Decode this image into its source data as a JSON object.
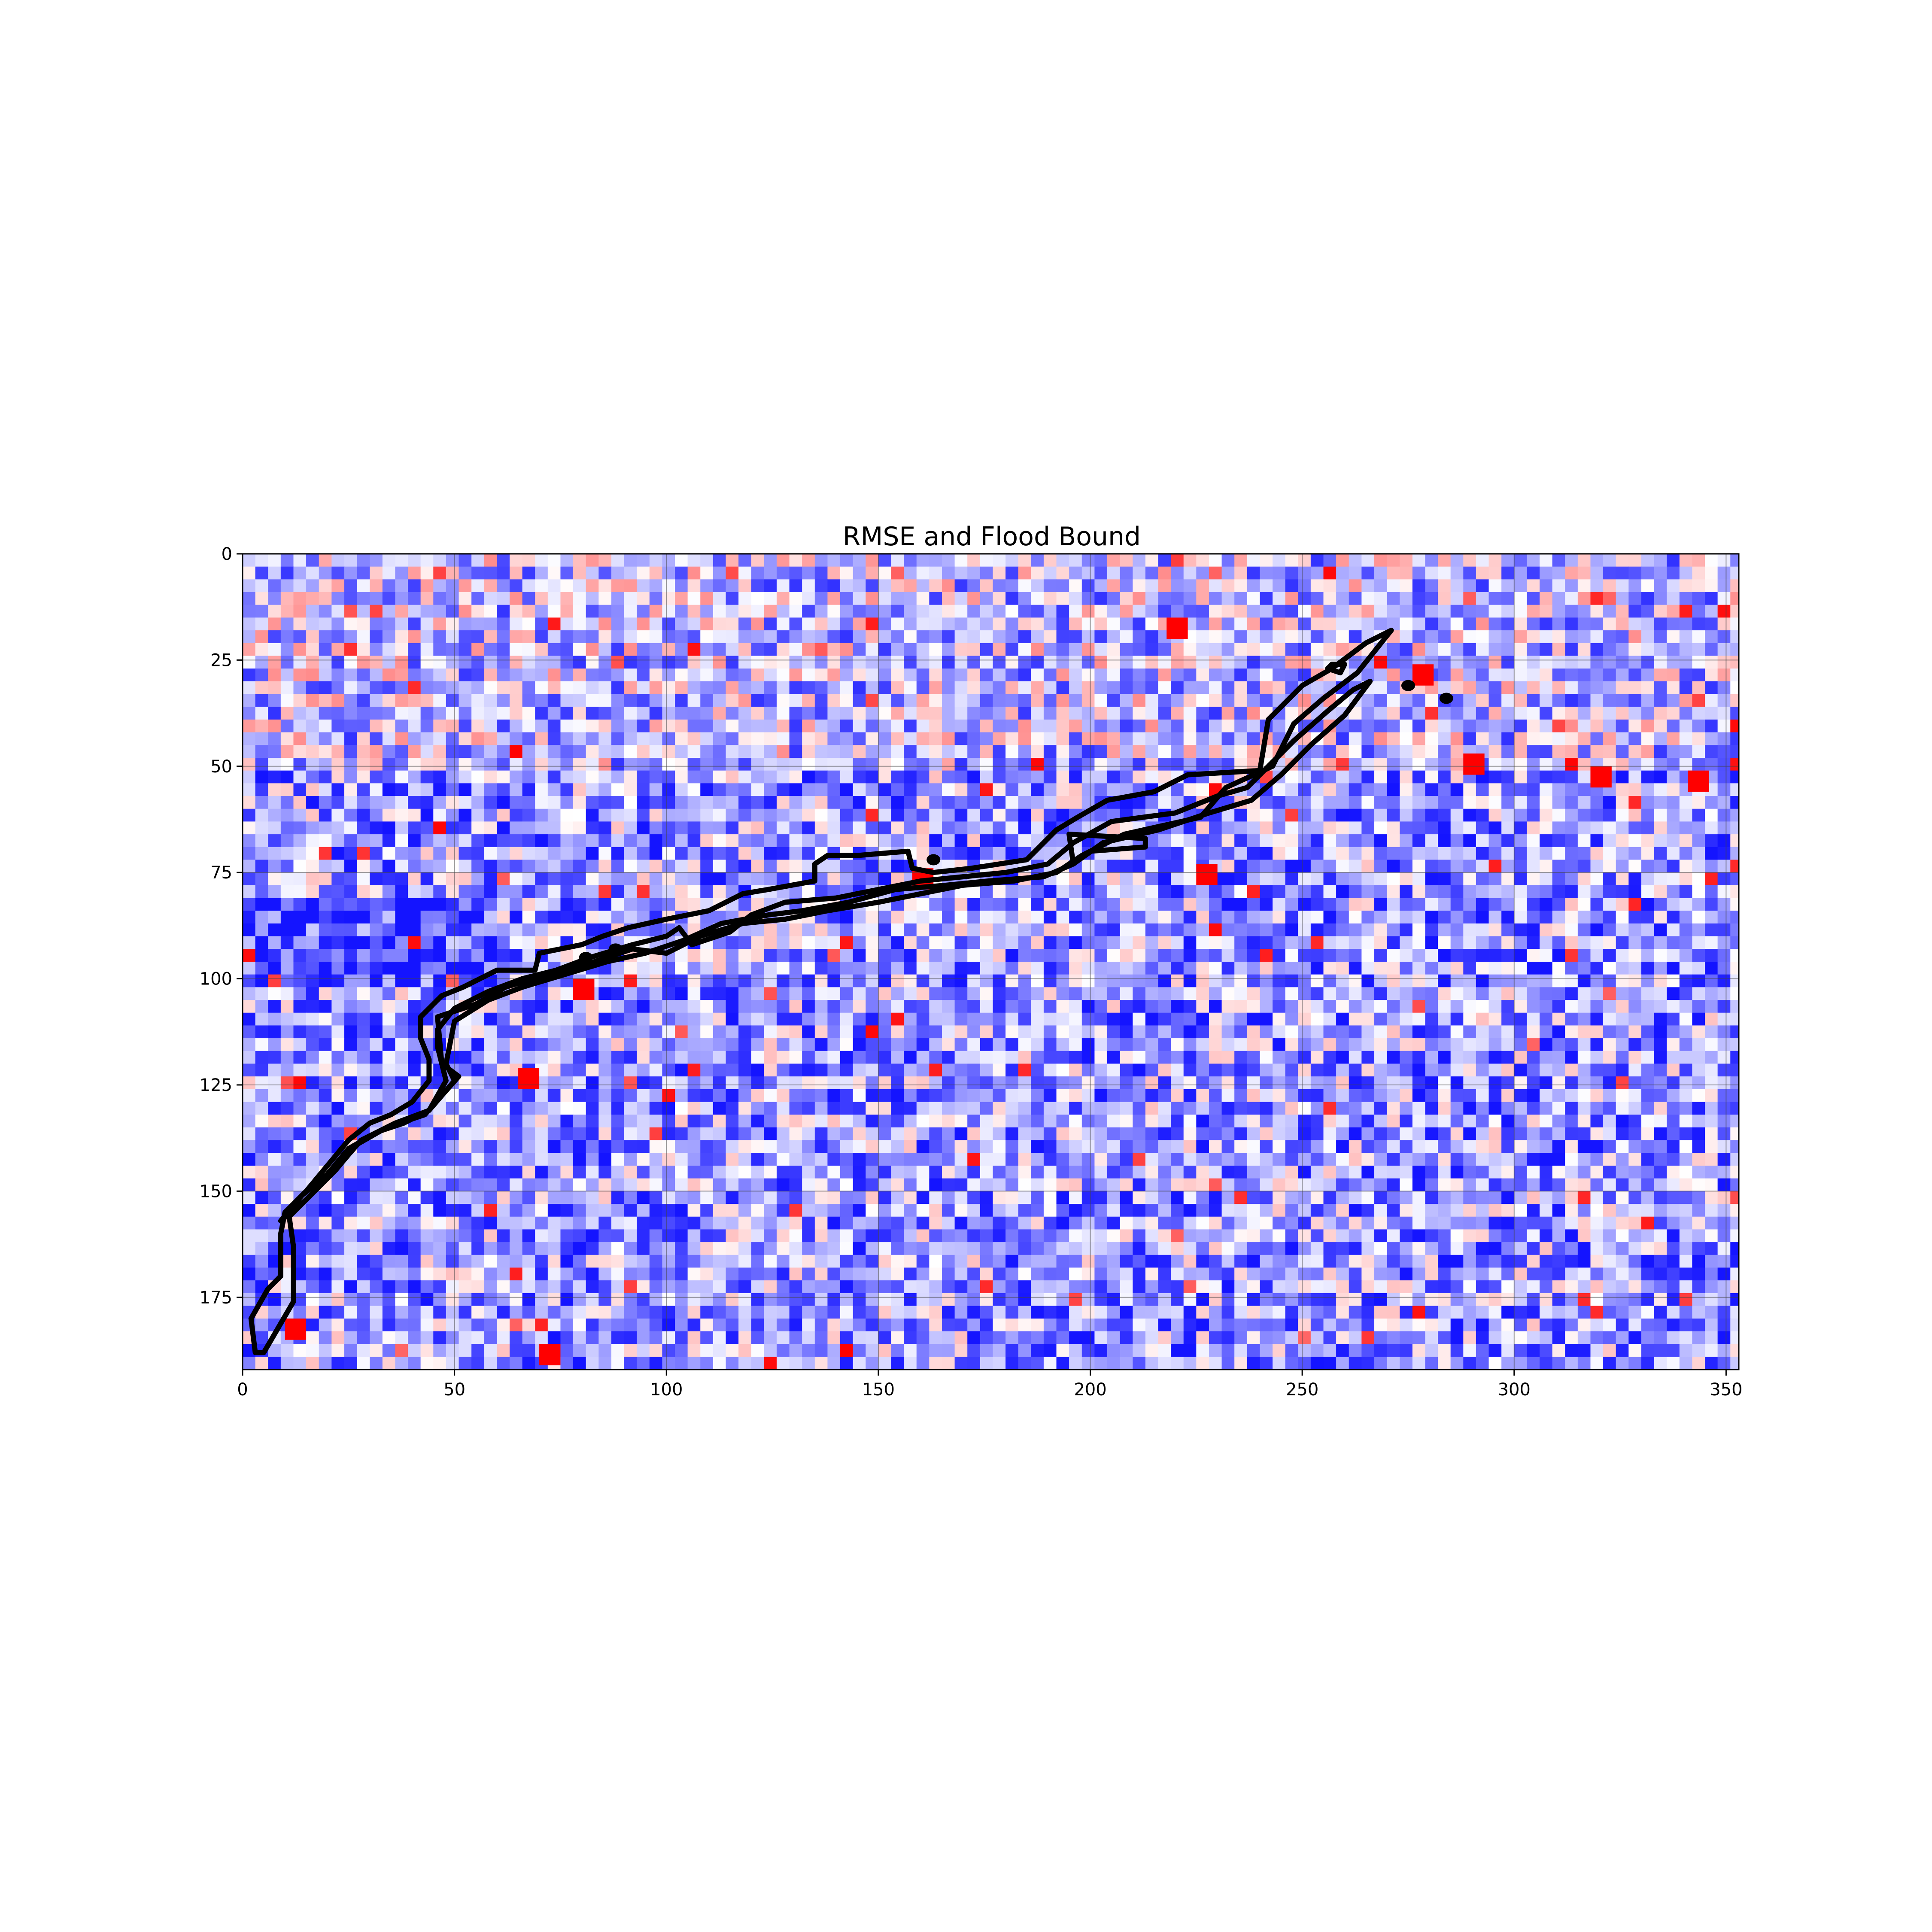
{
  "chart_data": {
    "type": "heatmap",
    "title": "RMSE and Flood Bound",
    "xlabel": "",
    "ylabel": "",
    "xlim": [
      0,
      353
    ],
    "ylim": [
      192,
      0
    ],
    "x_ticks": [
      0,
      50,
      100,
      150,
      200,
      250,
      300,
      350
    ],
    "y_ticks": [
      0,
      25,
      50,
      75,
      100,
      125,
      150,
      175
    ],
    "x_tick_labels": [
      "0",
      "50",
      "100",
      "150",
      "200",
      "250",
      "300",
      "350"
    ],
    "y_tick_labels": [
      "0",
      "25",
      "50",
      "75",
      "100",
      "125",
      "150",
      "175"
    ],
    "grid": true,
    "colormap": "bwr",
    "colors": {
      "low": "#0000ff",
      "mid": "#ffffff",
      "high": "#ff0000",
      "contour": "#000000"
    },
    "hotspots": [
      {
        "x": 343,
        "y": 53
      },
      {
        "x": 227,
        "y": 75
      },
      {
        "x": 67,
        "y": 123
      },
      {
        "x": 72,
        "y": 188
      },
      {
        "x": 12,
        "y": 182
      },
      {
        "x": 80,
        "y": 102
      },
      {
        "x": 278,
        "y": 28
      },
      {
        "x": 220,
        "y": 17
      },
      {
        "x": 290,
        "y": 49
      },
      {
        "x": 320,
        "y": 52
      },
      {
        "x": 160,
        "y": 76
      }
    ],
    "flood_bound": {
      "outer": [
        [
          3,
          188
        ],
        [
          2,
          180
        ],
        [
          6,
          173
        ],
        [
          9,
          170
        ],
        [
          9,
          160
        ],
        [
          10,
          155
        ],
        [
          15,
          150
        ],
        [
          20,
          144
        ],
        [
          25,
          138
        ],
        [
          30,
          134
        ],
        [
          35,
          132
        ],
        [
          40,
          129
        ],
        [
          44,
          124
        ],
        [
          44,
          119
        ],
        [
          42,
          114
        ],
        [
          42,
          109
        ],
        [
          47,
          104
        ],
        [
          52,
          102
        ],
        [
          60,
          98
        ],
        [
          69,
          98
        ],
        [
          70,
          94
        ],
        [
          80,
          92
        ],
        [
          85,
          90
        ],
        [
          91,
          88
        ],
        [
          100,
          86
        ],
        [
          110,
          84
        ],
        [
          118,
          80
        ],
        [
          124,
          79
        ],
        [
          135,
          77
        ],
        [
          135,
          73
        ],
        [
          138,
          71
        ],
        [
          145,
          71
        ],
        [
          157,
          70
        ],
        [
          158,
          74
        ],
        [
          163,
          75
        ],
        [
          172,
          74
        ],
        [
          185,
          72
        ],
        [
          192,
          65
        ],
        [
          197,
          62
        ],
        [
          204,
          58
        ],
        [
          215,
          56
        ],
        [
          223,
          52
        ],
        [
          240,
          51
        ],
        [
          242,
          39
        ],
        [
          250,
          31
        ],
        [
          257,
          27
        ],
        [
          265,
          21
        ],
        [
          271,
          18
        ],
        [
          263,
          28
        ],
        [
          255,
          34
        ],
        [
          248,
          40
        ],
        [
          243,
          50
        ],
        [
          232,
          55
        ],
        [
          226,
          62
        ],
        [
          208,
          66
        ],
        [
          198,
          71
        ],
        [
          192,
          75
        ],
        [
          182,
          77
        ],
        [
          170,
          78
        ],
        [
          160,
          80
        ],
        [
          150,
          82
        ],
        [
          138,
          84
        ],
        [
          128,
          86
        ],
        [
          118,
          87
        ],
        [
          108,
          90
        ],
        [
          100,
          94
        ],
        [
          92,
          93
        ],
        [
          83,
          96
        ],
        [
          72,
          99
        ],
        [
          62,
          102
        ],
        [
          55,
          106
        ],
        [
          46,
          109
        ],
        [
          47,
          120
        ],
        [
          51,
          123
        ],
        [
          43,
          132
        ],
        [
          34,
          135
        ],
        [
          27,
          139
        ],
        [
          22,
          145
        ],
        [
          16,
          151
        ],
        [
          11,
          156
        ],
        [
          12,
          163
        ],
        [
          12,
          176
        ],
        [
          5,
          188
        ],
        [
          3,
          188
        ]
      ],
      "inner": [
        [
          9,
          157
        ],
        [
          14,
          151
        ],
        [
          20,
          146
        ],
        [
          25,
          140
        ],
        [
          32,
          136
        ],
        [
          38,
          134
        ],
        [
          44,
          131
        ],
        [
          48,
          124
        ],
        [
          46,
          116
        ],
        [
          46,
          112
        ],
        [
          50,
          107
        ],
        [
          58,
          103
        ],
        [
          66,
          100
        ],
        [
          74,
          98
        ],
        [
          82,
          95
        ],
        [
          92,
          92
        ],
        [
          100,
          90
        ],
        [
          103,
          88
        ],
        [
          106,
          92
        ],
        [
          115,
          89
        ],
        [
          120,
          85
        ],
        [
          128,
          82
        ],
        [
          140,
          81
        ],
        [
          150,
          79
        ],
        [
          160,
          77
        ],
        [
          170,
          76
        ],
        [
          180,
          75
        ],
        [
          190,
          73
        ],
        [
          196,
          68
        ],
        [
          205,
          63
        ],
        [
          220,
          61
        ],
        [
          230,
          57
        ],
        [
          237,
          55
        ],
        [
          240,
          52
        ],
        [
          248,
          44
        ],
        [
          256,
          37
        ],
        [
          262,
          32
        ],
        [
          266,
          30
        ],
        [
          260,
          38
        ],
        [
          252,
          45
        ],
        [
          245,
          52
        ],
        [
          238,
          58
        ],
        [
          228,
          61
        ],
        [
          216,
          65
        ],
        [
          203,
          68
        ],
        [
          196,
          73
        ],
        [
          189,
          76
        ],
        [
          176,
          77
        ],
        [
          166,
          78
        ],
        [
          154,
          79
        ],
        [
          143,
          82
        ],
        [
          132,
          84
        ],
        [
          124,
          85
        ],
        [
          113,
          87
        ],
        [
          104,
          91
        ],
        [
          95,
          94
        ],
        [
          86,
          96
        ],
        [
          76,
          99
        ],
        [
          66,
          102
        ],
        [
          58,
          105
        ],
        [
          50,
          110
        ],
        [
          48,
          120
        ],
        [
          50,
          124
        ],
        [
          44,
          131
        ],
        [
          36,
          134
        ],
        [
          28,
          138
        ],
        [
          21,
          146
        ],
        [
          15,
          152
        ],
        [
          9,
          157
        ]
      ],
      "islands": [
        [
          [
            195,
            66
          ],
          [
            213,
            67
          ],
          [
            213,
            69
          ],
          [
            200,
            70
          ],
          [
            196,
            73
          ],
          [
            195,
            66
          ]
        ],
        [
          [
            257,
            26
          ],
          [
            260,
            26
          ],
          [
            259,
            28
          ],
          [
            256,
            27
          ],
          [
            257,
            26
          ]
        ]
      ],
      "dots": [
        {
          "x": 163,
          "y": 72
        },
        {
          "x": 81,
          "y": 95
        },
        {
          "x": 88,
          "y": 93
        },
        {
          "x": 275,
          "y": 31
        },
        {
          "x": 284,
          "y": 34
        }
      ]
    }
  }
}
